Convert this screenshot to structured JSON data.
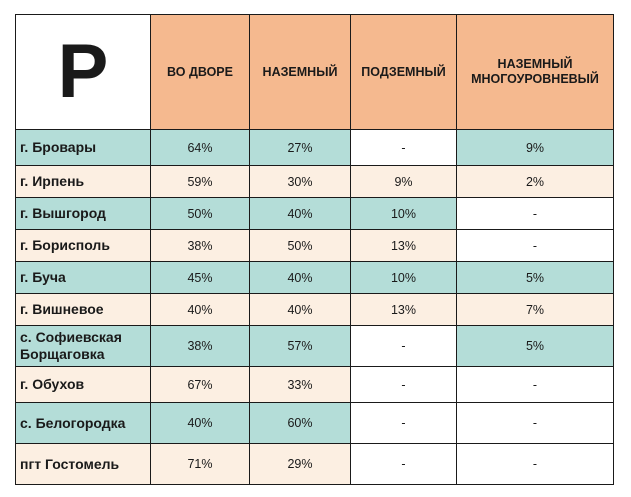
{
  "table": {
    "logo": "P",
    "headers": [
      "ВО ДВОРЕ",
      "НАЗЕМНЫЙ",
      "ПОДЗЕМНЫЙ",
      "НАЗЕМНЫЙ МНОГОУРОВНЕВЫЙ"
    ],
    "colors": {
      "header": "#f5b98f",
      "teal_row": "#b4ddd8",
      "cream_row": "#fcefe2",
      "empty_cell": "#ffffff"
    },
    "rows": [
      {
        "city": "г. Бровары",
        "yard": "64%",
        "ground": "27%",
        "underground": "-",
        "multilevel": "9%"
      },
      {
        "city": "г. Ирпень",
        "yard": "59%",
        "ground": "30%",
        "underground": "9%",
        "multilevel": "2%"
      },
      {
        "city": "г. Вышгород",
        "yard": "50%",
        "ground": "40%",
        "underground": "10%",
        "multilevel": "-"
      },
      {
        "city": "г. Борисполь",
        "yard": "38%",
        "ground": "50%",
        "underground": "13%",
        "multilevel": "-"
      },
      {
        "city": "г. Буча",
        "yard": "45%",
        "ground": "40%",
        "underground": "10%",
        "multilevel": "5%"
      },
      {
        "city": "г. Вишневое",
        "yard": "40%",
        "ground": "40%",
        "underground": "13%",
        "multilevel": "7%"
      },
      {
        "city": "с. Софиевская Борщаговка",
        "yard": "38%",
        "ground": "57%",
        "underground": "-",
        "multilevel": "5%"
      },
      {
        "city": "г. Обухов",
        "yard": "67%",
        "ground": "33%",
        "underground": "-",
        "multilevel": "-"
      },
      {
        "city": "с. Белогородка",
        "yard": "40%",
        "ground": "60%",
        "underground": "-",
        "multilevel": "-"
      },
      {
        "city": "пгт Гостомель",
        "yard": "71%",
        "ground": "29%",
        "underground": "-",
        "multilevel": "-"
      }
    ]
  }
}
